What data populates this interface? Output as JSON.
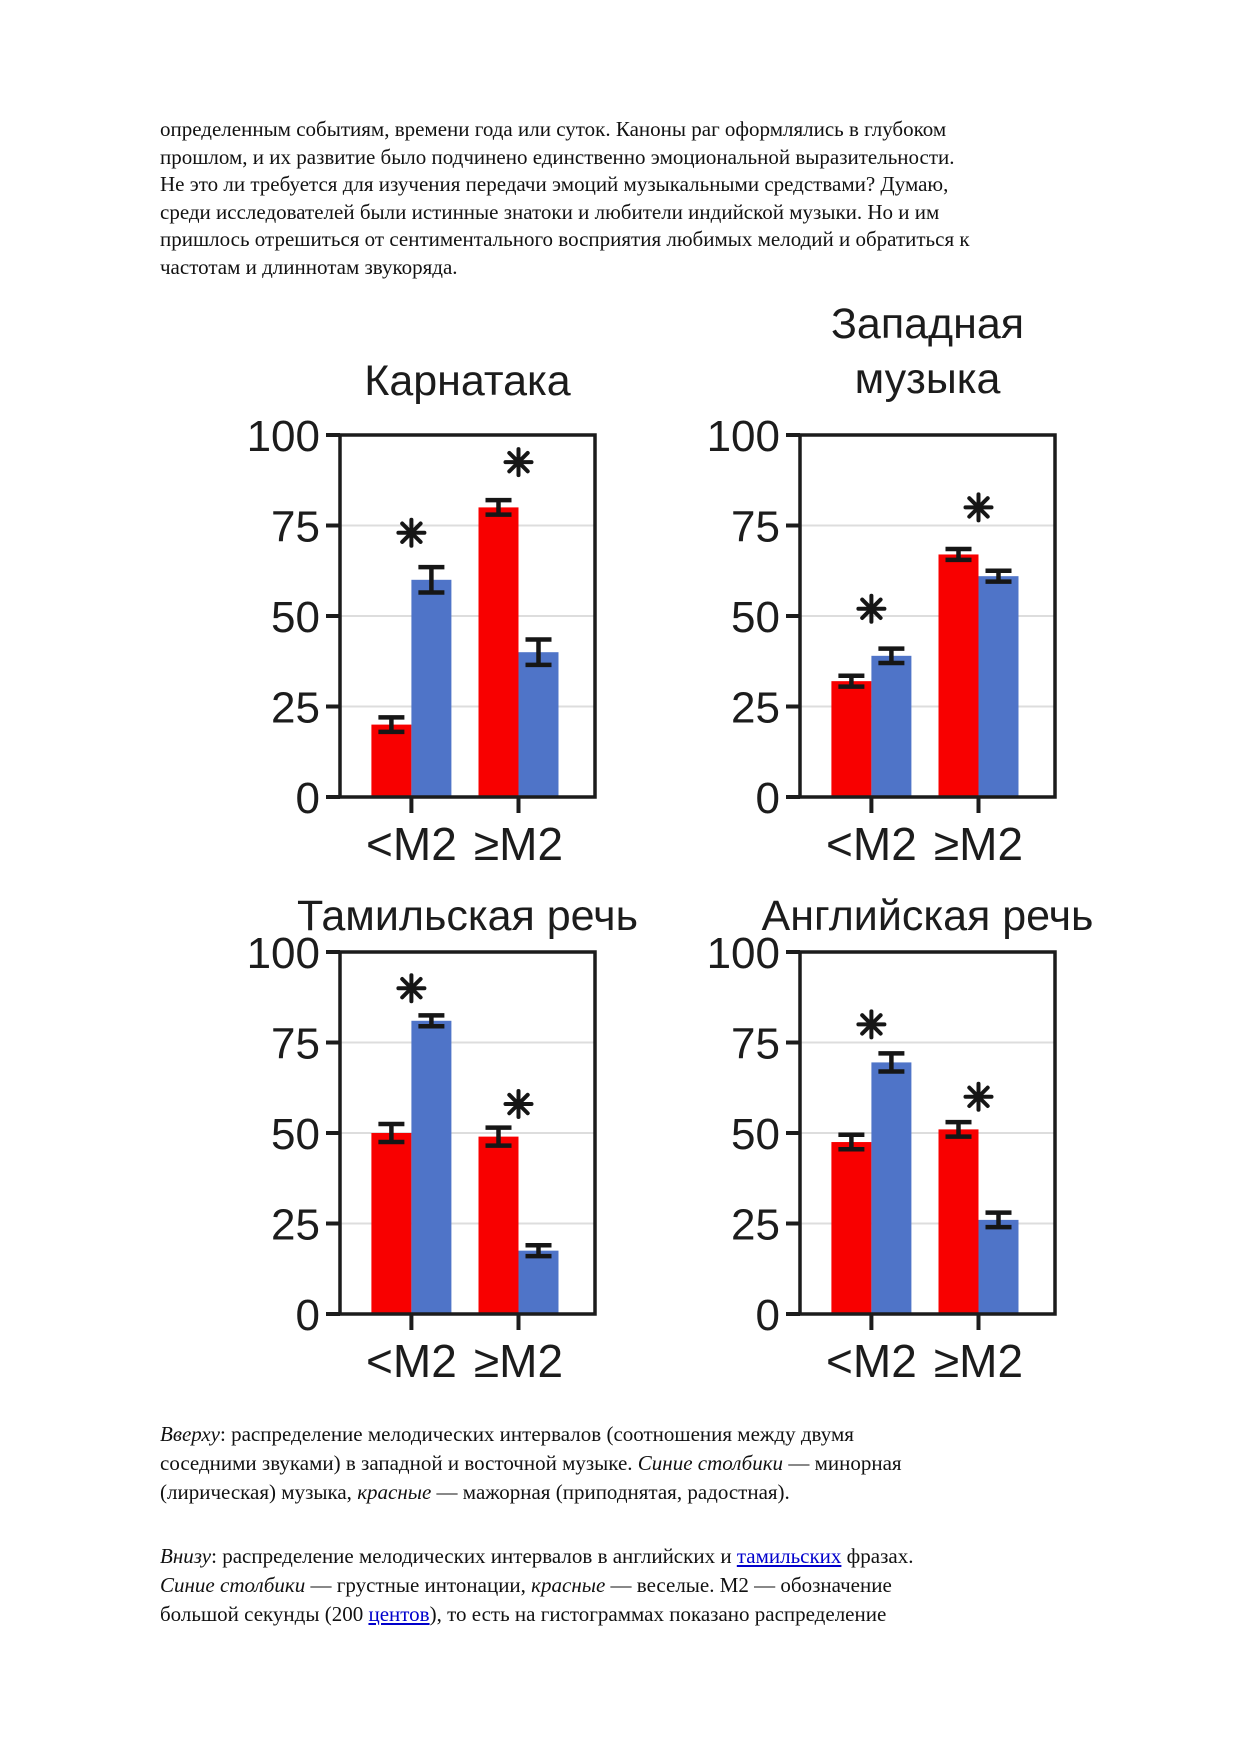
{
  "page": {
    "background": "#ffffff"
  },
  "colors": {
    "red_bar": "#f80000",
    "blue_bar": "#4f74c8",
    "grid": "#dddddd",
    "axis": "#1c1c1c",
    "error_bar": "#161616",
    "link": "#0000cc",
    "text": "#111111"
  },
  "intro": {
    "lines": [
      "определенным событиям, времени года или суток. Каноны раг оформлялись в глубоком",
      "прошлом, и их развитие было подчинено единственно эмоциональной выразительности.",
      "Не это ли требуется для изучения передачи эмоций музыкальными средствами? Думаю,",
      "среди исследователей были истинные знатоки и любители индийской музыки. Но и им",
      "пришлось отрешиться от сентиментального восприятия любимых мелодий и обратиться к",
      "частотам и длиннотам звукоряда."
    ]
  },
  "chart_data": [
    {
      "type": "bar",
      "title": "Карнатака",
      "title_lines": [
        "Карнатака"
      ],
      "categories": [
        "<M2",
        "≥M2"
      ],
      "series": [
        {
          "name": "красные (мажорная музыка)",
          "color": "#f80000",
          "values": [
            20,
            80
          ],
          "errors": [
            2,
            2
          ]
        },
        {
          "name": "синие (минорная музыка)",
          "color": "#4f74c8",
          "values": [
            60,
            40
          ],
          "errors": [
            3.5,
            3.5
          ]
        }
      ],
      "significance": [
        {
          "group": 0,
          "y": 73
        },
        {
          "group": 1,
          "y": 92.5
        }
      ],
      "ylim": [
        0,
        100
      ],
      "yticks": [
        0,
        25,
        50,
        75,
        100
      ],
      "grid": true,
      "legend": "none"
    },
    {
      "type": "bar",
      "title": "Западная музыка",
      "title_lines": [
        "Западная",
        "музыка"
      ],
      "categories": [
        "<M2",
        "≥M2"
      ],
      "series": [
        {
          "name": "красные (мажорная музыка)",
          "color": "#f80000",
          "values": [
            32,
            67
          ],
          "errors": [
            1.5,
            1.5
          ]
        },
        {
          "name": "синие (минорная музыка)",
          "color": "#4f74c8",
          "values": [
            39,
            61
          ],
          "errors": [
            2,
            1.5
          ]
        }
      ],
      "significance": [
        {
          "group": 0,
          "y": 52
        },
        {
          "group": 1,
          "y": 80
        }
      ],
      "ylim": [
        0,
        100
      ],
      "yticks": [
        0,
        25,
        50,
        75,
        100
      ],
      "grid": true,
      "legend": "none"
    },
    {
      "type": "bar",
      "title": "Тамильская речь",
      "title_lines": [
        "Тамильская речь"
      ],
      "categories": [
        "<M2",
        "≥M2"
      ],
      "series": [
        {
          "name": "красные (веселые интонации)",
          "color": "#f80000",
          "values": [
            50,
            49
          ],
          "errors": [
            2.5,
            2.5
          ]
        },
        {
          "name": "синие (грустные интонации)",
          "color": "#4f74c8",
          "values": [
            81,
            17.5
          ],
          "errors": [
            1.5,
            1.5
          ]
        }
      ],
      "significance": [
        {
          "group": 0,
          "y": 90
        },
        {
          "group": 1,
          "y": 58
        }
      ],
      "ylim": [
        0,
        100
      ],
      "yticks": [
        0,
        25,
        50,
        75,
        100
      ],
      "grid": true,
      "legend": "none"
    },
    {
      "type": "bar",
      "title": "Английская речь",
      "title_lines": [
        "Английская речь"
      ],
      "categories": [
        "<M2",
        "≥M2"
      ],
      "series": [
        {
          "name": "красные (веселые интонации)",
          "color": "#f80000",
          "values": [
            47.5,
            51
          ],
          "errors": [
            2,
            2
          ]
        },
        {
          "name": "синие (грустные интонации)",
          "color": "#4f74c8",
          "values": [
            69.5,
            26
          ],
          "errors": [
            2.5,
            2
          ]
        }
      ],
      "significance": [
        {
          "group": 0,
          "y": 80
        },
        {
          "group": 1,
          "y": 60
        }
      ],
      "ylim": [
        0,
        100
      ],
      "yticks": [
        0,
        25,
        50,
        75,
        100
      ],
      "grid": true,
      "legend": "none"
    }
  ],
  "captions": [
    {
      "name": "top-caption",
      "lines": [
        [
          {
            "t": "Вверху",
            "s": "i"
          },
          {
            "t": ": распределение мелодических интервалов (соотношения между двумя",
            "s": "n"
          }
        ],
        [
          {
            "t": "соседними звуками) в западной и восточной музыке. ",
            "s": "n"
          },
          {
            "t": "Синие столбики",
            "s": "i"
          },
          {
            "t": " — минорная",
            "s": "n"
          }
        ],
        [
          {
            "t": "(лирическая) музыка, ",
            "s": "n"
          },
          {
            "t": "красные",
            "s": "i"
          },
          {
            "t": " — мажорная (приподнятая, радостная).",
            "s": "n"
          }
        ]
      ]
    },
    {
      "name": "bottom-caption",
      "lines": [
        [
          {
            "t": "Внизу",
            "s": "i"
          },
          {
            "t": ": распределение мелодических интервалов в английских и ",
            "s": "n"
          },
          {
            "t": "тамильских",
            "s": "a"
          },
          {
            "t": " фразах.",
            "s": "n"
          }
        ],
        [
          {
            "t": "Синие столбики",
            "s": "i"
          },
          {
            "t": " — грустные интонации, ",
            "s": "n"
          },
          {
            "t": "красные",
            "s": "i"
          },
          {
            "t": " — веселые. М2 — обозначение",
            "s": "n"
          }
        ],
        [
          {
            "t": "большой секунды (200 ",
            "s": "n"
          },
          {
            "t": "центов",
            "s": "a"
          },
          {
            "t": "), то есть на гистограммах показано распределение",
            "s": "n"
          }
        ]
      ]
    }
  ]
}
